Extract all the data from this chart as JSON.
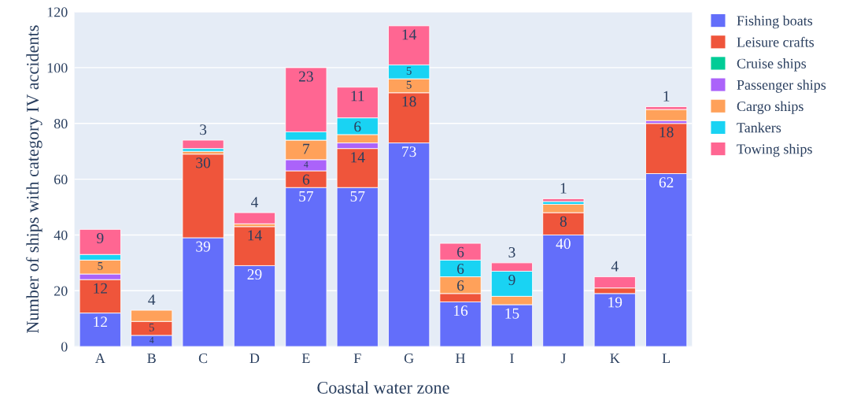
{
  "chart_data": {
    "type": "bar",
    "stacked": true,
    "xlabel": "Coastal water zone",
    "ylabel": "Number of ships with category IV accidents",
    "categories": [
      "A",
      "B",
      "C",
      "D",
      "E",
      "F",
      "G",
      "H",
      "I",
      "J",
      "K",
      "L"
    ],
    "series": [
      {
        "name": "Fishing boats",
        "color": "#636efa",
        "values": [
          12,
          4,
          39,
          29,
          57,
          57,
          73,
          16,
          15,
          40,
          19,
          62
        ],
        "value_labels": [
          "12",
          "4",
          "39",
          "29",
          "57",
          "57",
          "73",
          "16",
          "15",
          "40",
          "19",
          "62"
        ]
      },
      {
        "name": "Leisure crafts",
        "color": "#ef553b",
        "values": [
          12,
          5,
          30,
          14,
          6,
          14,
          18,
          3,
          null,
          8,
          2,
          18
        ],
        "value_labels": [
          "12",
          "5",
          "30",
          "14",
          "6",
          "14",
          "18",
          null,
          null,
          "8",
          null,
          "18"
        ]
      },
      {
        "name": "Cruise ships",
        "color": "#00cc96",
        "values": [
          null,
          null,
          null,
          null,
          null,
          null,
          null,
          null,
          null,
          null,
          null,
          null
        ]
      },
      {
        "name": "Passenger ships",
        "color": "#ab63fa",
        "values": [
          2,
          null,
          null,
          null,
          4,
          2,
          null,
          null,
          null,
          null,
          null,
          1
        ],
        "value_labels": [
          null,
          null,
          null,
          null,
          "4",
          null,
          null,
          null,
          null,
          null,
          null,
          null
        ]
      },
      {
        "name": "Cargo ships",
        "color": "#ffa15a",
        "values": [
          5,
          4,
          1,
          1,
          7,
          3,
          5,
          6,
          3,
          3,
          null,
          4
        ],
        "value_labels": [
          "5",
          "4",
          null,
          null,
          "7",
          null,
          "5",
          "6",
          null,
          null,
          null,
          null
        ]
      },
      {
        "name": "Tankers",
        "color": "#19d3f3",
        "values": [
          2,
          null,
          1,
          null,
          3,
          6,
          5,
          6,
          9,
          1,
          null,
          null
        ],
        "value_labels": [
          null,
          null,
          null,
          null,
          null,
          "6",
          "5",
          "6",
          "9",
          null,
          null,
          null
        ]
      },
      {
        "name": "Towing ships",
        "color": "#ff6692",
        "values": [
          9,
          null,
          3,
          4,
          23,
          11,
          14,
          6,
          3,
          1,
          4,
          1
        ],
        "value_labels": [
          "9",
          null,
          "3",
          "4",
          "23",
          "11",
          "14",
          "6",
          "3",
          "1",
          "4",
          "1"
        ]
      }
    ],
    "ylim": [
      0,
      120
    ],
    "yticks": [
      0,
      20,
      40,
      60,
      80,
      100,
      120
    ],
    "grid": "y",
    "legend": "right"
  }
}
